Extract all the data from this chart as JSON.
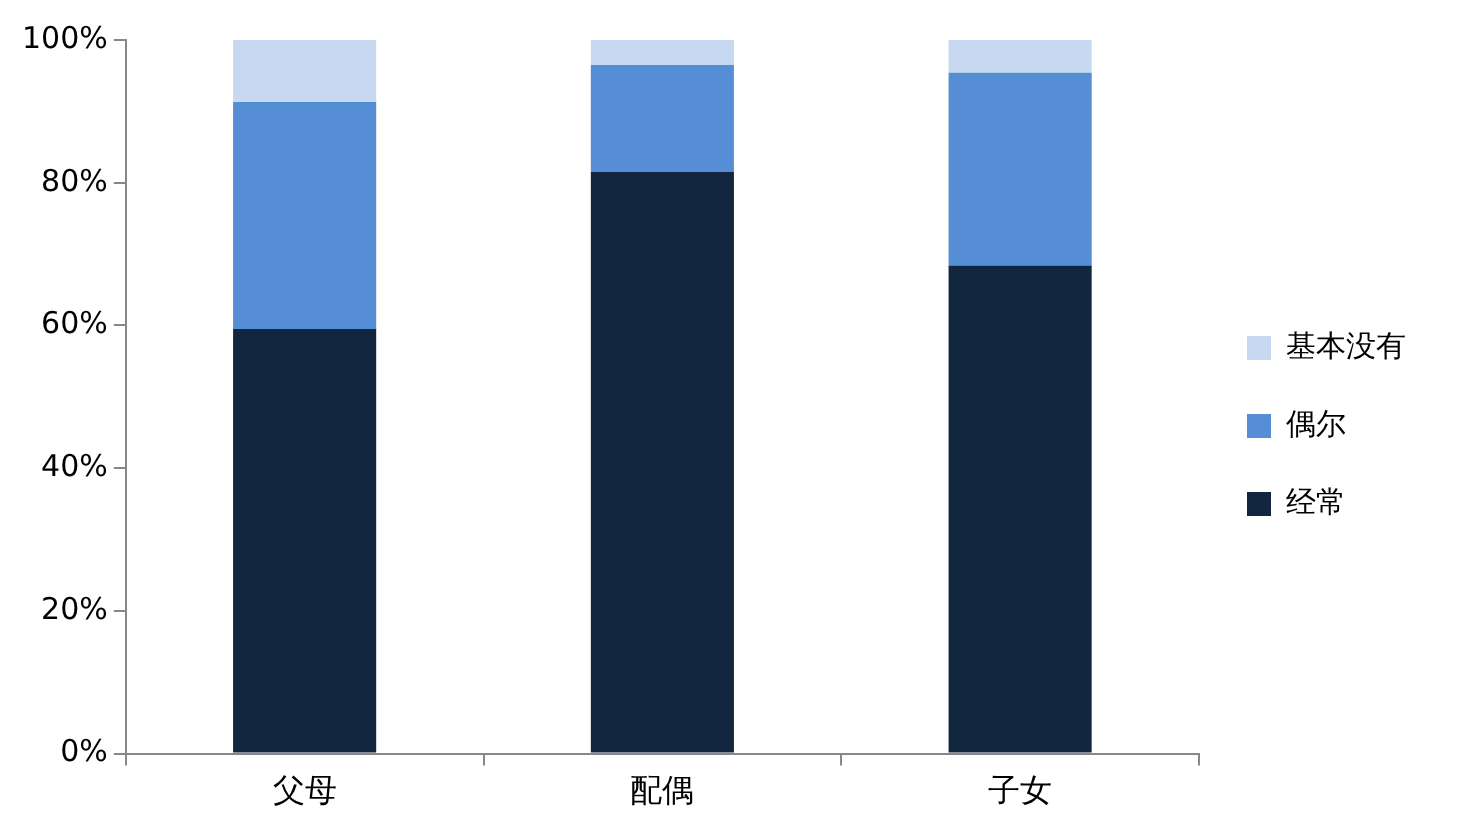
{
  "chart_data": {
    "type": "bar",
    "stacked": true,
    "categories": [
      "父母",
      "配偶",
      "子女"
    ],
    "series": [
      {
        "name": "经常",
        "color": "#12263f",
        "values": [
          59.5,
          81.5,
          68.4
        ]
      },
      {
        "name": "偶尔",
        "color": "#558ed5",
        "values": [
          31.8,
          15,
          27
        ]
      },
      {
        "name": "基本没有",
        "color": "#c6d9f1",
        "values": [
          8.7,
          3.5,
          4.6
        ]
      }
    ],
    "ylim": [
      0,
      100
    ],
    "yticks": [
      {
        "value": 0,
        "label": "0%"
      },
      {
        "value": 20,
        "label": "20%"
      },
      {
        "value": 40,
        "label": "40%"
      },
      {
        "value": 60,
        "label": "60%"
      },
      {
        "value": 80,
        "label": "80%"
      },
      {
        "value": 100,
        "label": "100%"
      }
    ],
    "grid": false,
    "legend": "right"
  }
}
